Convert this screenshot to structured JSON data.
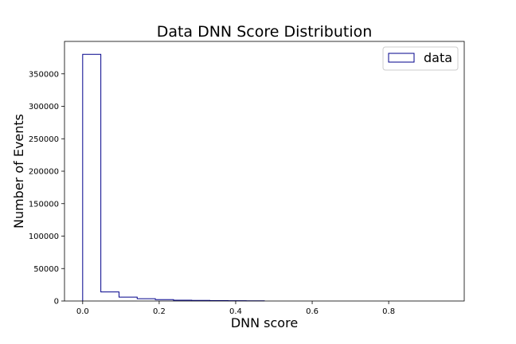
{
  "chart_data": {
    "type": "histogram",
    "title": "Data DNN Score Distribution",
    "xlabel": "DNN score",
    "ylabel": "Number of Events",
    "xlim": [
      -0.0475,
      0.9975
    ],
    "ylim": [
      0,
      400000
    ],
    "xticks": [
      0.0,
      0.2,
      0.4,
      0.6,
      0.8
    ],
    "xtick_labels": [
      "0.0",
      "0.2",
      "0.4",
      "0.6",
      "0.8"
    ],
    "yticks": [
      0,
      50000,
      100000,
      150000,
      200000,
      250000,
      300000,
      350000
    ],
    "ytick_labels": [
      "0",
      "50000",
      "100000",
      "150000",
      "200000",
      "250000",
      "300000",
      "350000"
    ],
    "grid": false,
    "legend_position": "top-right",
    "series": [
      {
        "name": "data",
        "color": "#00008b",
        "bin_edges": [
          0.0,
          0.0475,
          0.095,
          0.1425,
          0.19,
          0.2375,
          0.285,
          0.3325,
          0.38,
          0.4275,
          0.475
        ],
        "counts": [
          380000,
          14000,
          6000,
          3500,
          2200,
          1300,
          900,
          600,
          400,
          300
        ]
      }
    ]
  }
}
